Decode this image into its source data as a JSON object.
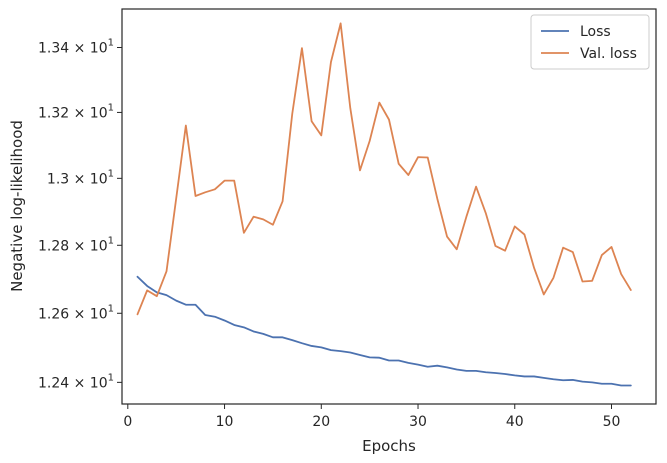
{
  "chart_data": {
    "type": "line",
    "title": "",
    "xlabel": "Epochs",
    "ylabel": "Negative log-likelihood",
    "yscale": "log",
    "xlim": [
      -0.6,
      54.6
    ],
    "ylim": [
      12.338,
      13.52
    ],
    "grid": false,
    "legend_position": "top-right",
    "x_ticks": [
      {
        "value": 0,
        "label": "0"
      },
      {
        "value": 10,
        "label": "10"
      },
      {
        "value": 20,
        "label": "20"
      },
      {
        "value": 30,
        "label": "30"
      },
      {
        "value": 40,
        "label": "40"
      },
      {
        "value": 50,
        "label": "50"
      }
    ],
    "y_ticks": [
      {
        "value": 12.4,
        "mantissa": "1.24",
        "base": "10",
        "exponent": "1"
      },
      {
        "value": 12.6,
        "mantissa": "1.26",
        "base": "10",
        "exponent": "1"
      },
      {
        "value": 12.8,
        "mantissa": "1.28",
        "base": "10",
        "exponent": "1"
      },
      {
        "value": 13.0,
        "mantissa": "1.3",
        "base": "10",
        "exponent": "1"
      },
      {
        "value": 13.2,
        "mantissa": "1.32",
        "base": "10",
        "exponent": "1"
      },
      {
        "value": 13.4,
        "mantissa": "1.34",
        "base": "10",
        "exponent": "1"
      }
    ],
    "x": [
      1,
      2,
      3,
      4,
      5,
      6,
      7,
      8,
      9,
      10,
      11,
      12,
      13,
      14,
      15,
      16,
      17,
      18,
      19,
      20,
      21,
      22,
      23,
      24,
      25,
      26,
      27,
      28,
      29,
      30,
      31,
      32,
      33,
      34,
      35,
      36,
      37,
      38,
      39,
      40,
      41,
      42,
      43,
      44,
      45,
      46,
      47,
      48,
      49,
      50,
      51,
      52
    ],
    "series": [
      {
        "name": "Loss",
        "color": "#4c72b0",
        "values": [
          12.707,
          12.68,
          12.661,
          12.653,
          12.637,
          12.625,
          12.625,
          12.595,
          12.59,
          12.579,
          12.566,
          12.559,
          12.547,
          12.54,
          12.53,
          12.53,
          12.522,
          12.513,
          12.505,
          12.501,
          12.493,
          12.49,
          12.486,
          12.479,
          12.472,
          12.471,
          12.463,
          12.463,
          12.456,
          12.451,
          12.445,
          12.448,
          12.443,
          12.437,
          12.433,
          12.433,
          12.429,
          12.427,
          12.424,
          12.42,
          12.417,
          12.417,
          12.413,
          12.409,
          12.406,
          12.407,
          12.402,
          12.4,
          12.396,
          12.396,
          12.391,
          12.391
        ]
      },
      {
        "name": "Val. loss",
        "color": "#dd8452",
        "values": [
          12.597,
          12.667,
          12.65,
          12.723,
          12.939,
          13.16,
          12.947,
          12.958,
          12.967,
          12.993,
          12.993,
          12.837,
          12.885,
          12.877,
          12.861,
          12.931,
          13.196,
          13.398,
          13.173,
          13.13,
          13.355,
          13.475,
          13.213,
          13.024,
          13.113,
          13.23,
          13.178,
          13.044,
          13.01,
          13.064,
          13.063,
          12.938,
          12.826,
          12.788,
          12.885,
          12.975,
          12.896,
          12.798,
          12.784,
          12.856,
          12.832,
          12.733,
          12.655,
          12.704,
          12.793,
          12.78,
          12.693,
          12.695,
          12.771,
          12.795,
          12.715,
          12.668
        ]
      }
    ]
  }
}
